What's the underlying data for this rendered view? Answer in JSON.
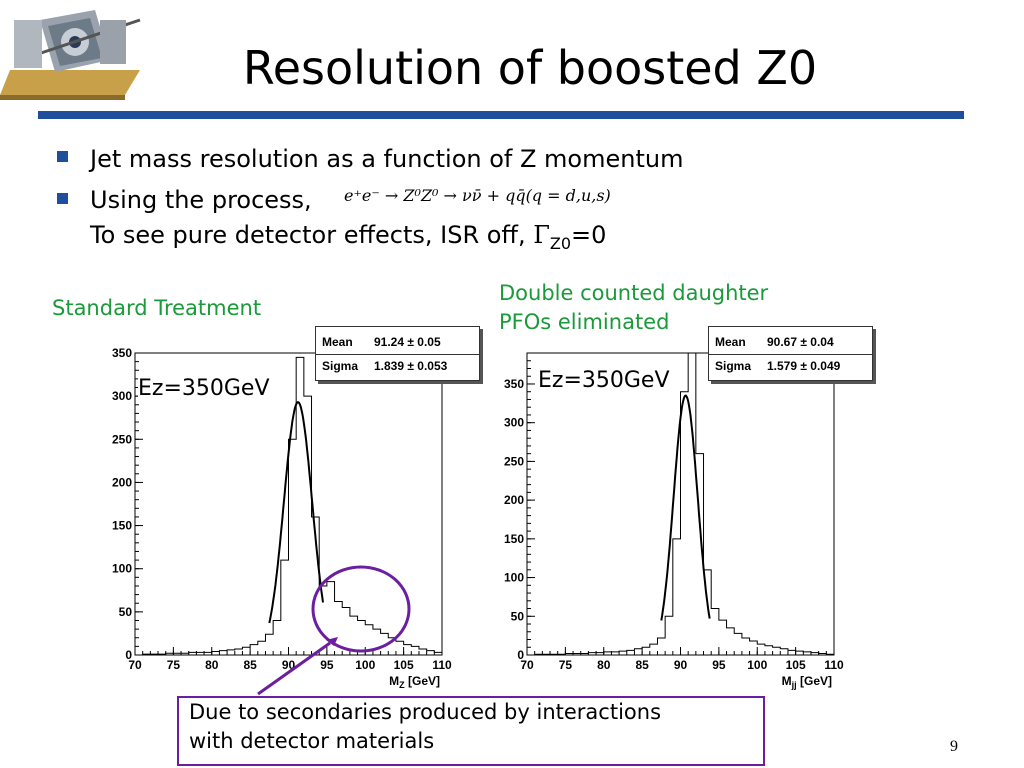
{
  "title": "Resolution of boosted Z0",
  "bullets": [
    {
      "text": "Jet mass resolution as a function of Z momentum"
    },
    {
      "text": "Using the process,",
      "formula": "e⁺e⁻ → Z⁰Z⁰ → νν̄ + qq̄(q = d,u,s)",
      "line2": "To see pure detector effects, ISR off, ",
      "gamma": "Γ",
      "gamma_sub": "Z0",
      "gamma_tail": "=0"
    }
  ],
  "left_label": "Standard Treatment",
  "right_label": [
    "Double counted daughter",
    "PFOs  eliminated"
  ],
  "annotation": [
    "Due to secondaries produced by interactions",
    "with  detector materials"
  ],
  "page_number": "9",
  "colors": {
    "accent": "#1f4e9c",
    "green": "#1a9a3a",
    "purple": "#6b1fa0"
  },
  "chart_data": [
    {
      "type": "line",
      "energy_label": "Ez=350GeV",
      "xlabel": "M",
      "xlabel_sub": "Z",
      "xlabel_unit": " [GeV]",
      "xlim": [
        70,
        110
      ],
      "ylim": [
        0,
        350
      ],
      "xticks": [
        70,
        75,
        80,
        85,
        90,
        95,
        100,
        105,
        110
      ],
      "yticks": [
        0,
        50,
        100,
        150,
        200,
        250,
        300,
        350
      ],
      "stats": [
        {
          "key": "Mean",
          "value": "91.24 ± 0.05"
        },
        {
          "key": "Sigma",
          "value": "1.839 ± 0.053"
        }
      ],
      "histogram": {
        "x": [
          70,
          71,
          72,
          73,
          74,
          75,
          76,
          77,
          78,
          79,
          80,
          81,
          82,
          83,
          84,
          85,
          86,
          87,
          88,
          89,
          90,
          91,
          92,
          93,
          94,
          95,
          96,
          97,
          98,
          99,
          100,
          101,
          102,
          103,
          104,
          105,
          106,
          107,
          108,
          109
        ],
        "values": [
          0,
          1,
          1,
          1,
          2,
          2,
          2,
          3,
          3,
          3,
          4,
          5,
          6,
          7,
          9,
          12,
          16,
          24,
          40,
          110,
          250,
          345,
          300,
          160,
          80,
          85,
          62,
          55,
          45,
          40,
          35,
          30,
          25,
          20,
          16,
          12,
          10,
          7,
          5,
          3
        ]
      },
      "fit": {
        "type": "gaussian",
        "mean": 91.24,
        "sigma": 1.839,
        "peak": 293,
        "range": [
          87.5,
          94.5
        ]
      }
    },
    {
      "type": "line",
      "energy_label": "Ez=350GeV",
      "xlabel": "M",
      "xlabel_sub": "jj",
      "xlabel_unit": " [GeV]",
      "xlim": [
        70,
        110
      ],
      "ylim": [
        0,
        390
      ],
      "xticks": [
        70,
        75,
        80,
        85,
        90,
        95,
        100,
        105,
        110
      ],
      "yticks": [
        0,
        50,
        100,
        150,
        200,
        250,
        300,
        350
      ],
      "stats": [
        {
          "key": "Mean",
          "value": "90.67 ± 0.04"
        },
        {
          "key": "Sigma",
          "value": "1.579 ± 0.049"
        }
      ],
      "histogram": {
        "x": [
          70,
          71,
          72,
          73,
          74,
          75,
          76,
          77,
          78,
          79,
          80,
          81,
          82,
          83,
          84,
          85,
          86,
          87,
          88,
          89,
          90,
          91,
          92,
          93,
          94,
          95,
          96,
          97,
          98,
          99,
          100,
          101,
          102,
          103,
          104,
          105,
          106,
          107,
          108,
          109
        ],
        "values": [
          0,
          1,
          1,
          1,
          1,
          2,
          2,
          2,
          3,
          3,
          4,
          4,
          5,
          6,
          8,
          10,
          14,
          22,
          50,
          150,
          340,
          390,
          260,
          110,
          60,
          45,
          35,
          28,
          22,
          18,
          14,
          12,
          10,
          8,
          6,
          5,
          4,
          3,
          2,
          1
        ]
      },
      "fit": {
        "type": "gaussian",
        "mean": 90.67,
        "sigma": 1.579,
        "peak": 335,
        "range": [
          87.5,
          93.8
        ]
      }
    }
  ]
}
